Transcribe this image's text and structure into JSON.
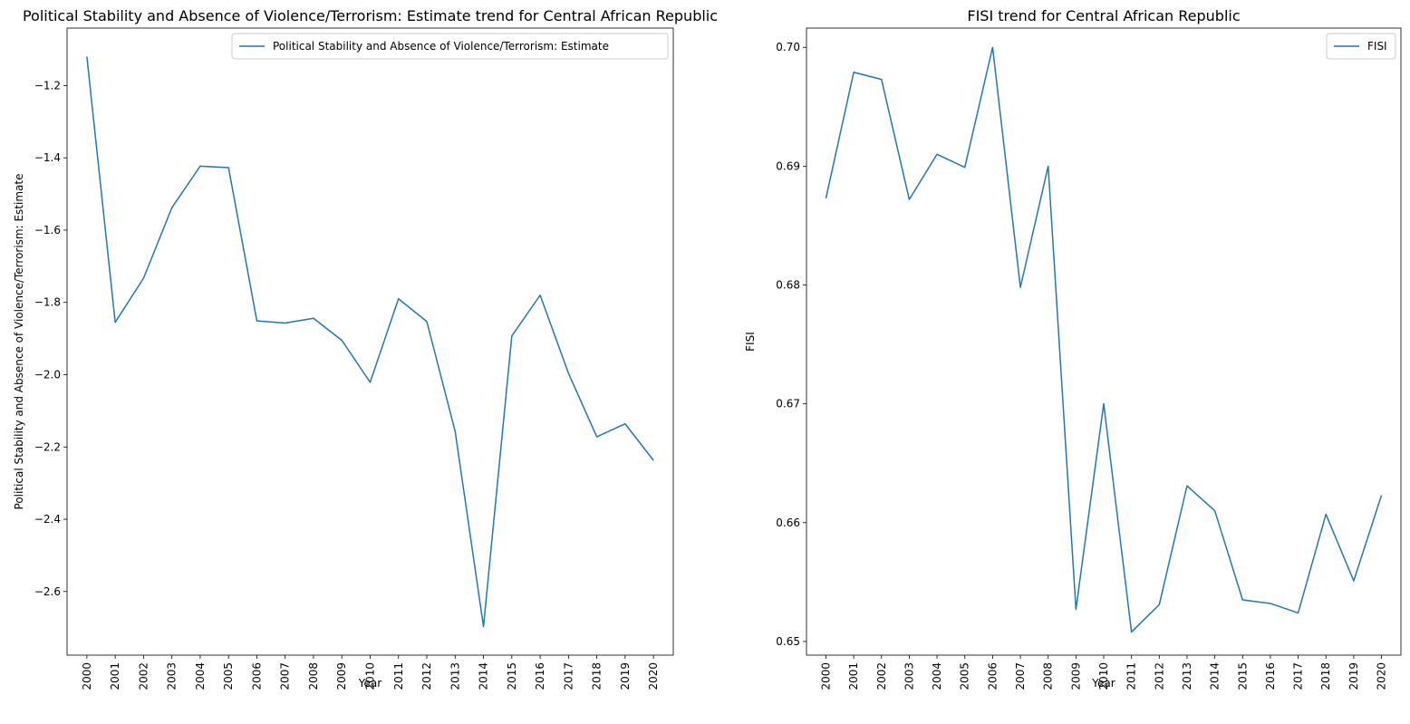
{
  "chart_data": [
    {
      "type": "line",
      "title": "Political Stability and Absence of Violence/Terrorism: Estimate trend for Central African Republic",
      "xlabel": "Year",
      "ylabel": "Political Stability and Absence of Violence/Terrorism: Estimate",
      "categories": [
        "2000",
        "2001",
        "2002",
        "2003",
        "2004",
        "2005",
        "2006",
        "2007",
        "2008",
        "2009",
        "2010",
        "2011",
        "2012",
        "2013",
        "2014",
        "2015",
        "2016",
        "2017",
        "2018",
        "2019",
        "2020"
      ],
      "series": [
        {
          "name": "Political Stability and Absence of Violence/Terrorism: Estimate",
          "values": [
            -1.12,
            -1.855,
            -1.733,
            -1.538,
            -1.423,
            -1.427,
            -1.851,
            -1.857,
            -1.844,
            -1.905,
            -2.021,
            -1.79,
            -1.853,
            -2.157,
            -2.697,
            -1.893,
            -1.78,
            -1.996,
            -2.172,
            -2.136,
            -2.237
          ]
        }
      ],
      "yticks": [
        -1.2,
        -1.4,
        -1.6,
        -1.8,
        -2.0,
        -2.2,
        -2.4,
        -2.6
      ],
      "yticklabels": [
        "−1.2",
        "−1.4",
        "−1.6",
        "−1.8",
        "−2.0",
        "−2.2",
        "−2.4",
        "−2.6"
      ],
      "ylim": [
        -2.776,
        -1.041
      ],
      "grid": false,
      "legend": "upper right",
      "color": "#1f77b4"
    },
    {
      "type": "line",
      "title": "FISI trend for Central African Republic",
      "xlabel": "Year",
      "ylabel": "FISI",
      "categories": [
        "2000",
        "2001",
        "2002",
        "2003",
        "2004",
        "2005",
        "2006",
        "2007",
        "2008",
        "2009",
        "2010",
        "2011",
        "2012",
        "2013",
        "2014",
        "2015",
        "2016",
        "2017",
        "2018",
        "2019",
        "2020"
      ],
      "series": [
        {
          "name": "FISI",
          "values": [
            0.6873,
            0.6979,
            0.6973,
            0.6872,
            0.691,
            0.6899,
            0.7,
            0.6798,
            0.69,
            0.6527,
            0.67,
            0.6508,
            0.6531,
            0.6631,
            0.661,
            0.6535,
            0.6532,
            0.6524,
            0.6607,
            0.6551,
            0.6623
          ]
        }
      ],
      "yticks": [
        0.65,
        0.66,
        0.67,
        0.68,
        0.69,
        0.7
      ],
      "yticklabels": [
        "0.65",
        "0.66",
        "0.67",
        "0.68",
        "0.69",
        "0.70"
      ],
      "ylim": [
        0.64885,
        0.70162
      ],
      "grid": false,
      "legend": "upper right",
      "color": "#1f77b4"
    }
  ]
}
